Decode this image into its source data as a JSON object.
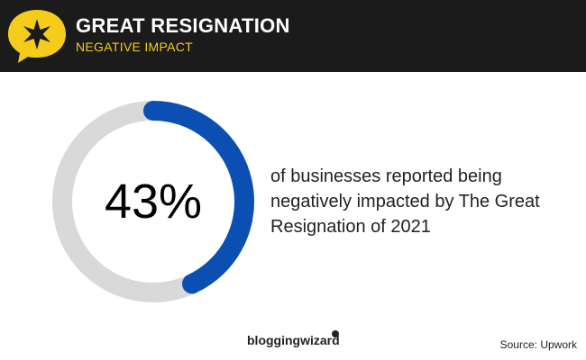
{
  "header": {
    "title": "GREAT RESIGNATION",
    "subtitle": "NEGATIVE IMPACT",
    "badge_icon": "star-speech-bubble-icon",
    "accent_color": "#f5cc1a",
    "background_color": "#1b1b1b"
  },
  "chart_data": {
    "type": "pie",
    "variant": "donut",
    "value_label": "43%",
    "segments": [
      {
        "value": 43,
        "color": "#0b4fb3"
      },
      {
        "value": 57,
        "color": "#d9d9d9"
      }
    ]
  },
  "caption": "of businesses reported being negatively impacted by The Great Resignation of 2021",
  "footer": {
    "brand": "bloggingwizard",
    "source": "Source: Upwork"
  }
}
